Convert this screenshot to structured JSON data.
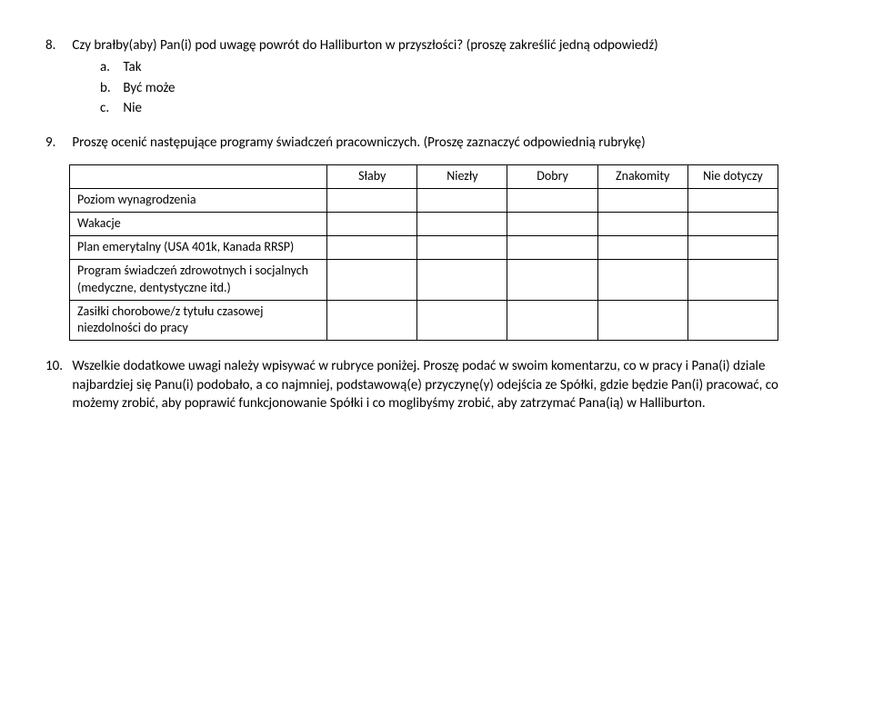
{
  "q8": {
    "number": "8.",
    "text": "Czy brałby(aby) Pan(i) pod uwagę powrót do Halliburton w przyszłości? (proszę zakreślić jedną odpowiedź)",
    "options": [
      {
        "letter": "a.",
        "label": "Tak"
      },
      {
        "letter": "b.",
        "label": "Być może"
      },
      {
        "letter": "c.",
        "label": "Nie"
      }
    ]
  },
  "q9": {
    "number": "9.",
    "text": "Proszę ocenić następujące programy świadczeń pracowniczych. (Proszę zaznaczyć odpowiednią rubrykę)",
    "headers": [
      "Słaby",
      "Niezły",
      "Dobry",
      "Znakomity",
      "Nie dotyczy"
    ],
    "rows": [
      "Poziom wynagrodzenia",
      "Wakacje",
      "Plan emerytalny (USA 401k, Kanada RRSP)",
      "Program świadczeń zdrowotnych i socjalnych (medyczne, dentystyczne itd.)",
      "Zasiłki chorobowe/z tytułu czasowej niezdolności do pracy"
    ]
  },
  "q10": {
    "number": "10.",
    "text": "Wszelkie dodatkowe uwagi należy wpisywać w rubryce poniżej. Proszę podać w swoim komentarzu, co w pracy i Pana(i) dziale najbardziej się Panu(i) podobało, a co najmniej, podstawową(e) przyczynę(y) odejścia ze Spółki, gdzie będzie Pan(i) pracować, co możemy zrobić, aby poprawić funkcjonowanie Spółki i co moglibyśmy zrobić, aby zatrzymać Pana(ią) w Halliburton."
  }
}
